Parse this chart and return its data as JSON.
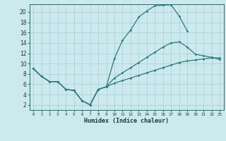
{
  "title": "",
  "xlabel": "Humidex (Indice chaleur)",
  "background_color": "#cce9ed",
  "grid_color": "#aacfd4",
  "line_color": "#2a7a7e",
  "xlim": [
    -0.5,
    23.5
  ],
  "ylim": [
    1.0,
    21.5
  ],
  "xticks": [
    0,
    1,
    2,
    3,
    4,
    5,
    6,
    7,
    8,
    9,
    10,
    11,
    12,
    13,
    14,
    15,
    16,
    17,
    18,
    19,
    20,
    21,
    22,
    23
  ],
  "yticks": [
    2,
    4,
    6,
    8,
    10,
    12,
    14,
    16,
    18,
    20
  ],
  "line1_x": [
    0,
    1,
    2,
    3,
    4,
    5,
    6,
    7,
    8,
    9,
    10,
    11,
    12,
    13,
    14,
    15,
    16,
    17,
    18,
    19
  ],
  "line1_y": [
    9.0,
    7.5,
    6.5,
    6.5,
    5.0,
    4.8,
    2.8,
    2.0,
    5.0,
    5.5,
    11.0,
    14.5,
    16.5,
    19.0,
    20.2,
    21.2,
    21.3,
    21.4,
    19.2,
    16.3
  ],
  "line2_x": [
    0,
    1,
    2,
    3,
    4,
    5,
    6,
    7,
    8,
    9,
    10,
    11,
    12,
    13,
    14,
    15,
    16,
    17,
    18,
    19,
    20,
    21,
    22,
    23
  ],
  "line2_y": [
    9.0,
    7.5,
    6.5,
    6.5,
    5.0,
    4.8,
    2.8,
    2.0,
    5.0,
    5.5,
    7.2,
    8.2,
    9.2,
    10.2,
    11.2,
    12.2,
    13.2,
    14.0,
    14.2,
    13.2,
    11.8,
    11.5,
    11.2,
    10.8
  ],
  "line3_x": [
    0,
    1,
    2,
    3,
    4,
    5,
    6,
    7,
    8,
    9,
    10,
    11,
    12,
    13,
    14,
    15,
    16,
    17,
    18,
    19,
    20,
    21,
    22,
    23
  ],
  "line3_y": [
    9.0,
    7.5,
    6.5,
    6.5,
    5.0,
    4.8,
    2.8,
    2.0,
    5.0,
    5.5,
    6.2,
    6.7,
    7.2,
    7.7,
    8.2,
    8.7,
    9.2,
    9.7,
    10.2,
    10.5,
    10.7,
    10.9,
    11.1,
    11.1
  ]
}
